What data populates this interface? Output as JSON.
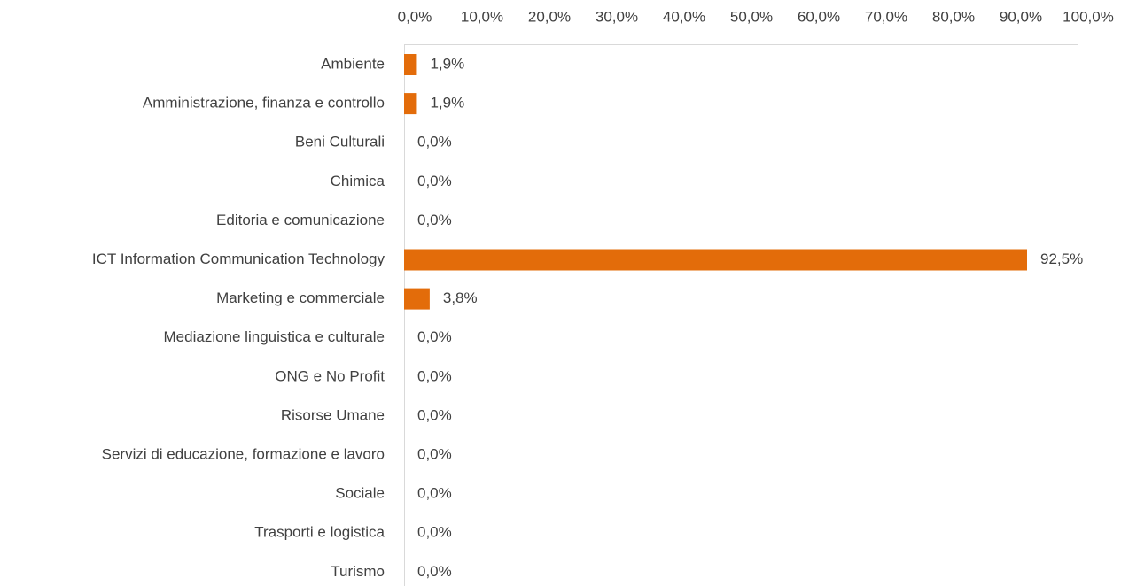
{
  "chart_data": {
    "type": "bar",
    "orientation": "horizontal",
    "categories": [
      "Ambiente",
      "Amministrazione, finanza e controllo",
      "Beni Culturali",
      "Chimica",
      "Editoria e comunicazione",
      "ICT Information Communication Technology",
      "Marketing e commerciale",
      "Mediazione linguistica e culturale",
      "ONG e No Profit",
      "Risorse Umane",
      "Servizi di educazione, formazione e lavoro",
      "Sociale",
      "Trasporti e logistica",
      "Turismo"
    ],
    "values": [
      1.9,
      1.9,
      0,
      0,
      0,
      92.5,
      3.8,
      0,
      0,
      0,
      0,
      0,
      0,
      0
    ],
    "value_labels": [
      "1,9%",
      "1,9%",
      "0,0%",
      "0,0%",
      "0,0%",
      "92,5%",
      "3,8%",
      "0,0%",
      "0,0%",
      "0,0%",
      "0,0%",
      "0,0%",
      "0,0%",
      "0,0%"
    ],
    "color": "#e36c0a",
    "xlim": [
      0,
      100
    ],
    "xticks": [
      {
        "value": 0,
        "label": "0,0%"
      },
      {
        "value": 10,
        "label": "10,0%"
      },
      {
        "value": 20,
        "label": "20,0%"
      },
      {
        "value": 30,
        "label": "30,0%"
      },
      {
        "value": 40,
        "label": "40,0%"
      },
      {
        "value": 50,
        "label": "50,0%"
      },
      {
        "value": 60,
        "label": "60,0%"
      },
      {
        "value": 70,
        "label": "70,0%"
      },
      {
        "value": 80,
        "label": "80,0%"
      },
      {
        "value": 90,
        "label": "90,0%"
      },
      {
        "value": 100,
        "label": "100,0%"
      }
    ],
    "grid": false
  }
}
